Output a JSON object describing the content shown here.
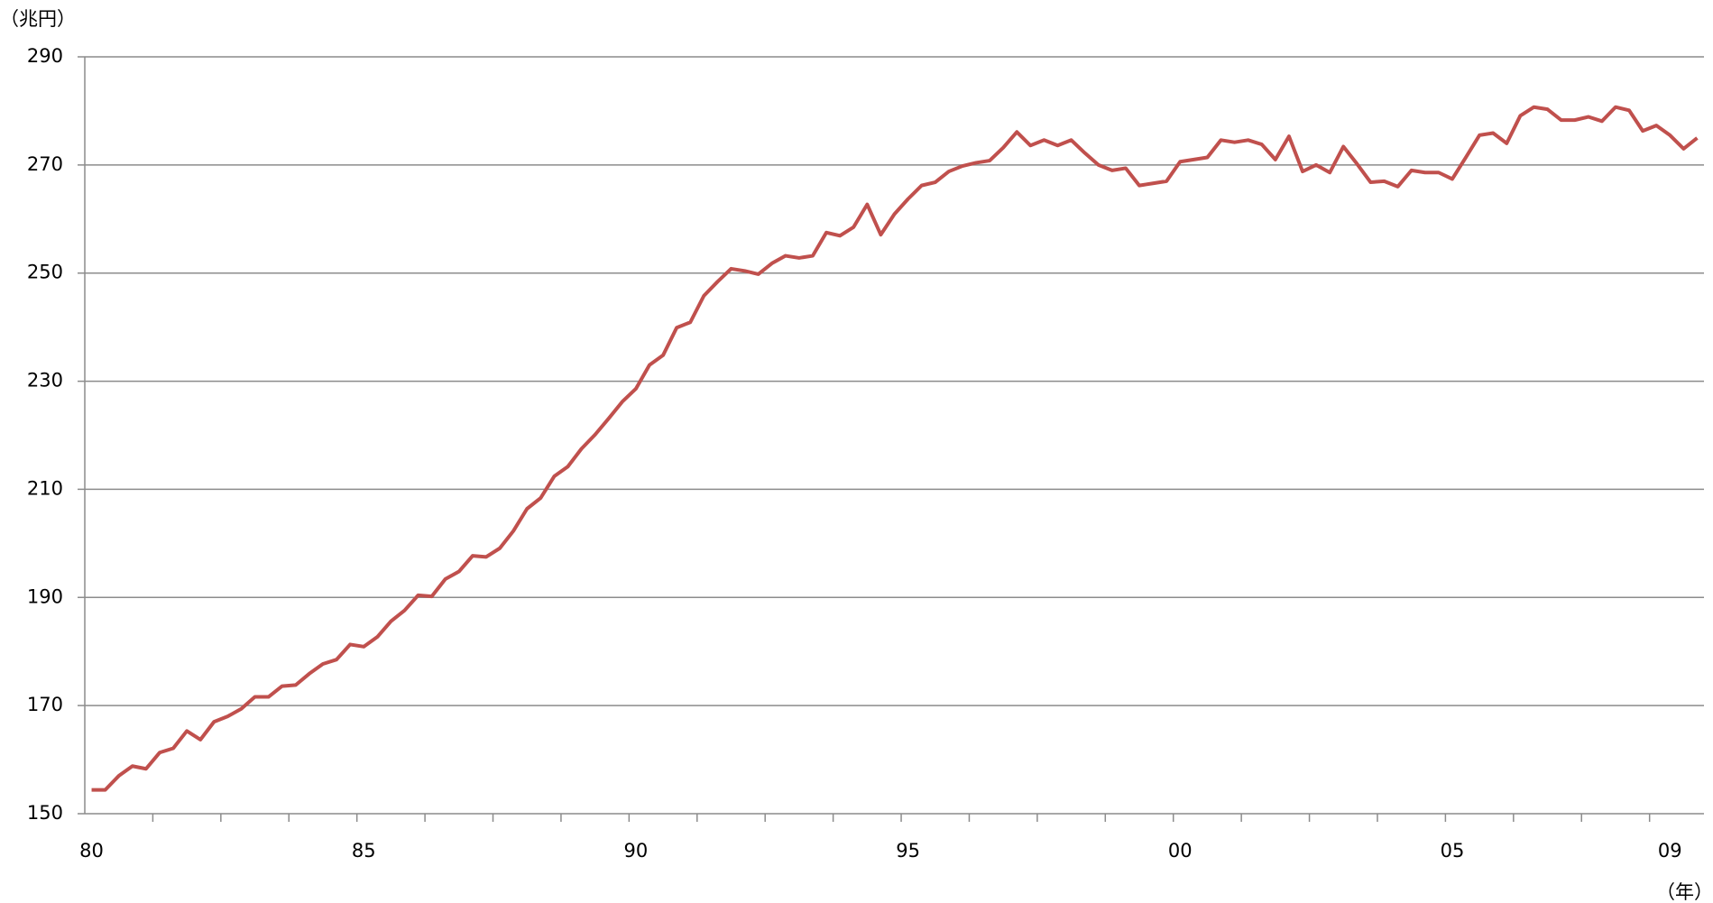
{
  "chart_data": {
    "type": "line",
    "y_label": "（兆円）",
    "x_label": "（年）",
    "categories": [
      "80",
      null,
      null,
      null,
      null,
      null,
      null,
      null,
      null,
      null,
      null,
      null,
      null,
      null,
      null,
      null,
      null,
      null,
      null,
      null,
      "85",
      null,
      null,
      null,
      null,
      null,
      null,
      null,
      null,
      null,
      null,
      null,
      null,
      null,
      null,
      null,
      null,
      null,
      null,
      null,
      "90",
      null,
      null,
      null,
      null,
      null,
      null,
      null,
      null,
      null,
      null,
      null,
      null,
      null,
      null,
      null,
      null,
      null,
      null,
      null,
      "95",
      null,
      null,
      null,
      null,
      null,
      null,
      null,
      null,
      null,
      null,
      null,
      null,
      null,
      null,
      null,
      null,
      null,
      null,
      null,
      "00",
      null,
      null,
      null,
      null,
      null,
      null,
      null,
      null,
      null,
      null,
      null,
      null,
      null,
      null,
      null,
      null,
      null,
      null,
      null,
      "05",
      null,
      null,
      null,
      null,
      null,
      null,
      null,
      null,
      null,
      null,
      null,
      null,
      null,
      null,
      null,
      "09",
      null,
      null
    ],
    "values": [
      154.4,
      154.4,
      157,
      158.8,
      158.3,
      161.3,
      162.1,
      165.3,
      163.7,
      167,
      168,
      169.4,
      171.6,
      171.6,
      173.6,
      173.8,
      175.9,
      177.7,
      178.5,
      181.3,
      180.9,
      182.7,
      185.6,
      187.6,
      190.4,
      190.2,
      193.4,
      194.8,
      197.7,
      197.5,
      199.1,
      202.3,
      206.4,
      208.4,
      212.4,
      214.2,
      217.5,
      220.1,
      223.1,
      226.2,
      228.6,
      233,
      234.8,
      239.9,
      240.9,
      245.8,
      248.4,
      250.8,
      250.4,
      249.8,
      251.8,
      253.2,
      252.8,
      253.2,
      257.5,
      256.9,
      258.5,
      262.7,
      257.1,
      260.9,
      263.7,
      266.2,
      266.8,
      268.8,
      269.8,
      270.4,
      270.8,
      273.2,
      276.1,
      273.6,
      274.6,
      273.6,
      274.6,
      272.2,
      270,
      269,
      269.4,
      266.2,
      266.6,
      267,
      270.6,
      271,
      271.4,
      274.6,
      274.2,
      274.6,
      273.8,
      271,
      275.3,
      268.8,
      270,
      268.6,
      273.4,
      270.2,
      266.8,
      267,
      266,
      269,
      268.6,
      268.6,
      267.4,
      271.4,
      275.5,
      275.9,
      274,
      279.1,
      280.7,
      280.3,
      278.3,
      278.3,
      278.9,
      278.1,
      280.7,
      280.1,
      276.3,
      277.3,
      275.5,
      273,
      275
    ],
    "color": "#c0504d",
    "ylim": [
      150,
      290
    ],
    "yticks": [
      150,
      170,
      190,
      210,
      230,
      250,
      270,
      290
    ],
    "grid": true
  }
}
